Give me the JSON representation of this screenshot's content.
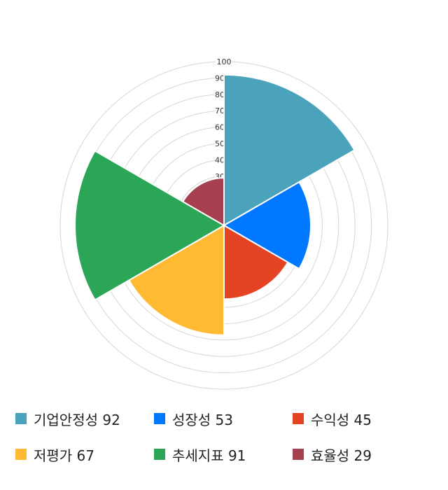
{
  "chart_data": {
    "type": "polar-area",
    "categories": [
      "기업안정성",
      "성장성",
      "수익성",
      "저평가",
      "추세지표",
      "효율성"
    ],
    "values": [
      92,
      53,
      45,
      67,
      91,
      29
    ],
    "colors": [
      "#4aa3bb",
      "#0078ff",
      "#e44423",
      "#ffb933",
      "#2ba656",
      "#a6404e"
    ],
    "rlim": [
      0,
      100
    ],
    "ticks": [
      "30",
      "40",
      "50",
      "60",
      "70",
      "80",
      "90",
      "100"
    ],
    "legend": [
      {
        "label": "기업안정성 92"
      },
      {
        "label": "성장성 53"
      },
      {
        "label": "수익성 45"
      },
      {
        "label": "저평가 67"
      },
      {
        "label": "추세지표 91"
      },
      {
        "label": "효율성 29"
      }
    ],
    "legend_position": "bottom",
    "grid": true
  }
}
